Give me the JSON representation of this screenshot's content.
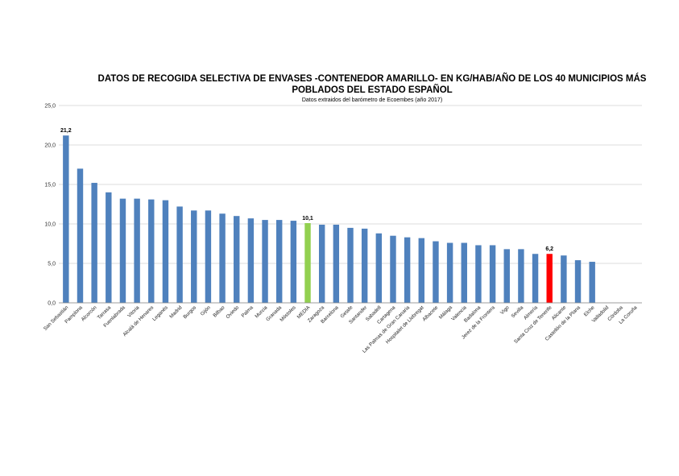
{
  "chart_data": {
    "type": "bar",
    "title_line1": "DATOS DE RECOGIDA SELECTIVA DE ENVASES -CONTENEDOR AMARILLO- EN KG/HAB/AÑO DE LOS 40 MUNICIPIOS MÁS",
    "title_line2": "POBLADOS DEL ESTADO ESPAÑOL",
    "subtitle": "Datos extraidos del barómetro de Ecoembes (año 2017)",
    "xlabel": "",
    "ylabel": "",
    "ylim": [
      0,
      25
    ],
    "yticks": [
      "0,0",
      "5,0",
      "10,0",
      "15,0",
      "20,0",
      "25,0"
    ],
    "grid": true,
    "colors": {
      "default": "#4f81bd",
      "media": "#92d050",
      "highlight": "#ff0000"
    },
    "categories": [
      "San Sebastián",
      "Pamplona",
      "Alcorcón",
      "Tarrasa",
      "Fuenlabrada",
      "Vitoria",
      "Alcalá de Henares",
      "Leganés",
      "Madrid",
      "Burgos",
      "Gijón",
      "Bilbao",
      "Oviedo",
      "Palma",
      "Murcia",
      "Granada",
      "Móstoles",
      "MEDIA",
      "Zaragoza",
      "Barcelona",
      "Getafe",
      "Santander",
      "Sabadell",
      "Cartagena",
      "Las Palmas de Gran Canaria",
      "Hospitalet de Llobregat",
      "Albacete",
      "Málaga",
      "Valencia",
      "Badalona",
      "Jerez de la Frontera",
      "Vigo",
      "Sevilla",
      "Almería",
      "Santa Cruz de Tenerife",
      "Alicante",
      "Castellón de la Plana",
      "Elche",
      "Valladolid",
      "Córdoba",
      "La Coruña"
    ],
    "values": [
      21.2,
      17.0,
      15.2,
      14.0,
      13.2,
      13.2,
      13.1,
      13.0,
      12.2,
      11.7,
      11.7,
      11.3,
      11.0,
      10.7,
      10.5,
      10.5,
      10.4,
      10.1,
      9.9,
      9.9,
      9.5,
      9.4,
      8.8,
      8.5,
      8.3,
      8.2,
      7.8,
      7.6,
      7.6,
      7.3,
      7.3,
      6.8,
      6.8,
      6.2,
      6.2,
      6.0,
      5.4,
      5.2,
      0,
      0,
      0
    ],
    "bar_colors": [
      "default",
      "default",
      "default",
      "default",
      "default",
      "default",
      "default",
      "default",
      "default",
      "default",
      "default",
      "default",
      "default",
      "default",
      "default",
      "default",
      "default",
      "media",
      "default",
      "default",
      "default",
      "default",
      "default",
      "default",
      "default",
      "default",
      "default",
      "default",
      "default",
      "default",
      "default",
      "default",
      "default",
      "default",
      "highlight",
      "default",
      "default",
      "default",
      "default",
      "default",
      "default"
    ],
    "data_labels": [
      {
        "index": 0,
        "text": "21,2"
      },
      {
        "index": 17,
        "text": "10,1"
      },
      {
        "index": 34,
        "text": "6,2"
      }
    ]
  }
}
